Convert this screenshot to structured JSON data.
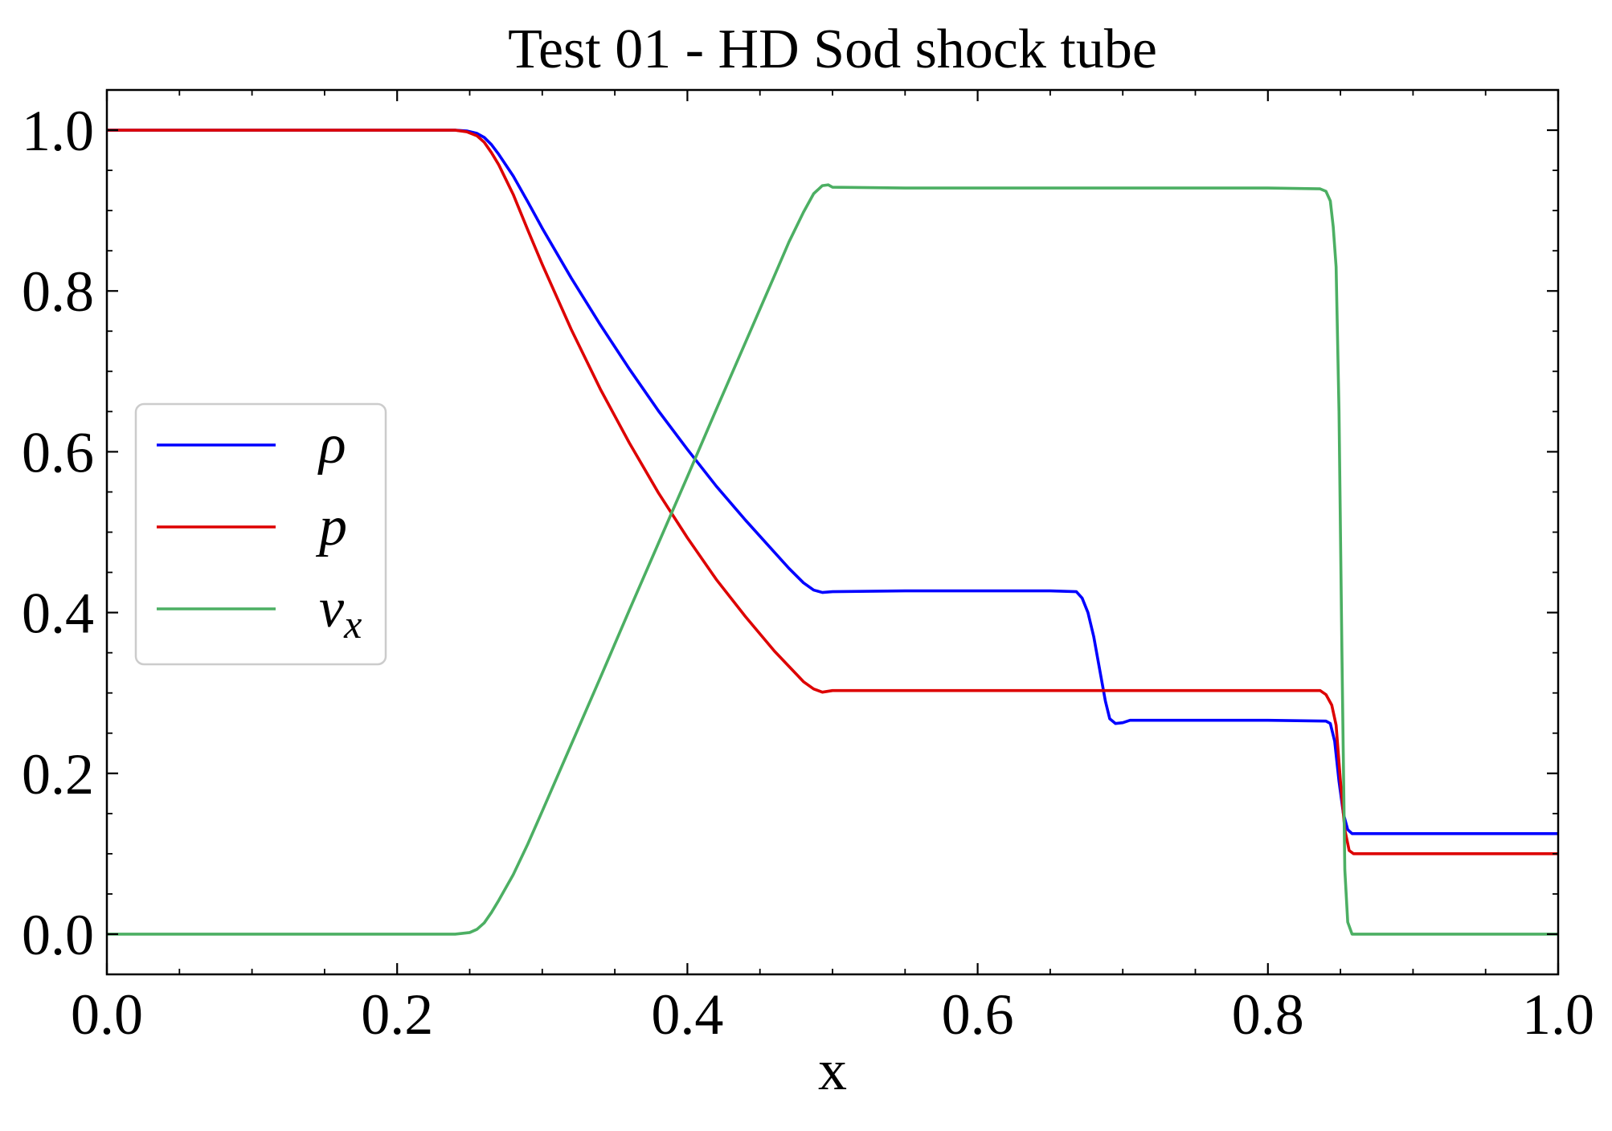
{
  "chart_data": {
    "type": "line",
    "title": "Test 01 - HD Sod shock tube",
    "xlabel": "x",
    "ylabel": "",
    "xlim": [
      0,
      1
    ],
    "ylim": [
      -0.05,
      1.05
    ],
    "xticks": [
      0,
      0.2,
      0.4,
      0.6,
      0.8,
      1.0
    ],
    "xtick_labels": [
      "0.0",
      "0.2",
      "0.4",
      "0.6",
      "0.8",
      "1.0"
    ],
    "yticks": [
      0,
      0.2,
      0.4,
      0.6,
      0.8,
      1.0
    ],
    "ytick_labels": [
      "0.0",
      "0.2",
      "0.4",
      "0.6",
      "0.8",
      "1.0"
    ],
    "minor_tick_interval": 0.05,
    "tick_direction": "in",
    "ticks_on_all_sides": true,
    "grid": false,
    "legend": {
      "location": "center left",
      "frame": true
    },
    "series": [
      {
        "name": "ρ",
        "color": "#0000ff",
        "x": [
          0,
          0.24,
          0.248,
          0.255,
          0.26,
          0.265,
          0.27,
          0.28,
          0.29,
          0.3,
          0.32,
          0.34,
          0.36,
          0.38,
          0.4,
          0.42,
          0.44,
          0.46,
          0.47,
          0.48,
          0.487,
          0.493,
          0.5,
          0.55,
          0.6,
          0.65,
          0.668,
          0.672,
          0.676,
          0.68,
          0.684,
          0.688,
          0.691,
          0.695,
          0.7,
          0.705,
          0.75,
          0.8,
          0.84,
          0.843,
          0.846,
          0.849,
          0.852,
          0.855,
          0.858,
          0.9,
          1.0
        ],
        "y": [
          1.0,
          1.0,
          0.999,
          0.996,
          0.991,
          0.982,
          0.97,
          0.943,
          0.911,
          0.878,
          0.816,
          0.758,
          0.703,
          0.651,
          0.603,
          0.557,
          0.515,
          0.475,
          0.455,
          0.437,
          0.428,
          0.425,
          0.426,
          0.427,
          0.427,
          0.427,
          0.426,
          0.418,
          0.4,
          0.37,
          0.33,
          0.29,
          0.268,
          0.262,
          0.263,
          0.266,
          0.266,
          0.266,
          0.265,
          0.262,
          0.24,
          0.19,
          0.15,
          0.13,
          0.125,
          0.125,
          0.125
        ]
      },
      {
        "name": "p",
        "color": "#dd0000",
        "x": [
          0,
          0.24,
          0.248,
          0.255,
          0.26,
          0.265,
          0.27,
          0.28,
          0.29,
          0.3,
          0.32,
          0.34,
          0.36,
          0.38,
          0.4,
          0.42,
          0.44,
          0.46,
          0.47,
          0.48,
          0.487,
          0.493,
          0.5,
          0.55,
          0.6,
          0.7,
          0.8,
          0.836,
          0.84,
          0.844,
          0.847,
          0.85,
          0.853,
          0.856,
          0.859,
          0.9,
          1.0
        ],
        "y": [
          1.0,
          1.0,
          0.998,
          0.993,
          0.985,
          0.972,
          0.957,
          0.92,
          0.876,
          0.833,
          0.752,
          0.678,
          0.611,
          0.549,
          0.493,
          0.441,
          0.395,
          0.352,
          0.333,
          0.314,
          0.305,
          0.301,
          0.303,
          0.303,
          0.303,
          0.303,
          0.303,
          0.303,
          0.298,
          0.285,
          0.26,
          0.19,
          0.13,
          0.104,
          0.1,
          0.1,
          0.1
        ]
      },
      {
        "name": "v",
        "name_sub": "x",
        "color": "#4caf63",
        "x": [
          0,
          0.24,
          0.25,
          0.255,
          0.26,
          0.265,
          0.27,
          0.28,
          0.29,
          0.3,
          0.32,
          0.34,
          0.36,
          0.38,
          0.4,
          0.42,
          0.44,
          0.46,
          0.47,
          0.48,
          0.487,
          0.493,
          0.497,
          0.5,
          0.55,
          0.6,
          0.7,
          0.8,
          0.836,
          0.84,
          0.843,
          0.845,
          0.847,
          0.849,
          0.851,
          0.853,
          0.855,
          0.858,
          0.9,
          1.0
        ],
        "y": [
          0,
          0,
          0.002,
          0.006,
          0.014,
          0.027,
          0.042,
          0.074,
          0.112,
          0.153,
          0.236,
          0.319,
          0.403,
          0.486,
          0.569,
          0.653,
          0.736,
          0.819,
          0.861,
          0.898,
          0.921,
          0.931,
          0.932,
          0.929,
          0.928,
          0.928,
          0.928,
          0.928,
          0.927,
          0.924,
          0.912,
          0.88,
          0.83,
          0.65,
          0.35,
          0.08,
          0.015,
          0.0,
          0.0,
          0.0
        ]
      }
    ]
  }
}
